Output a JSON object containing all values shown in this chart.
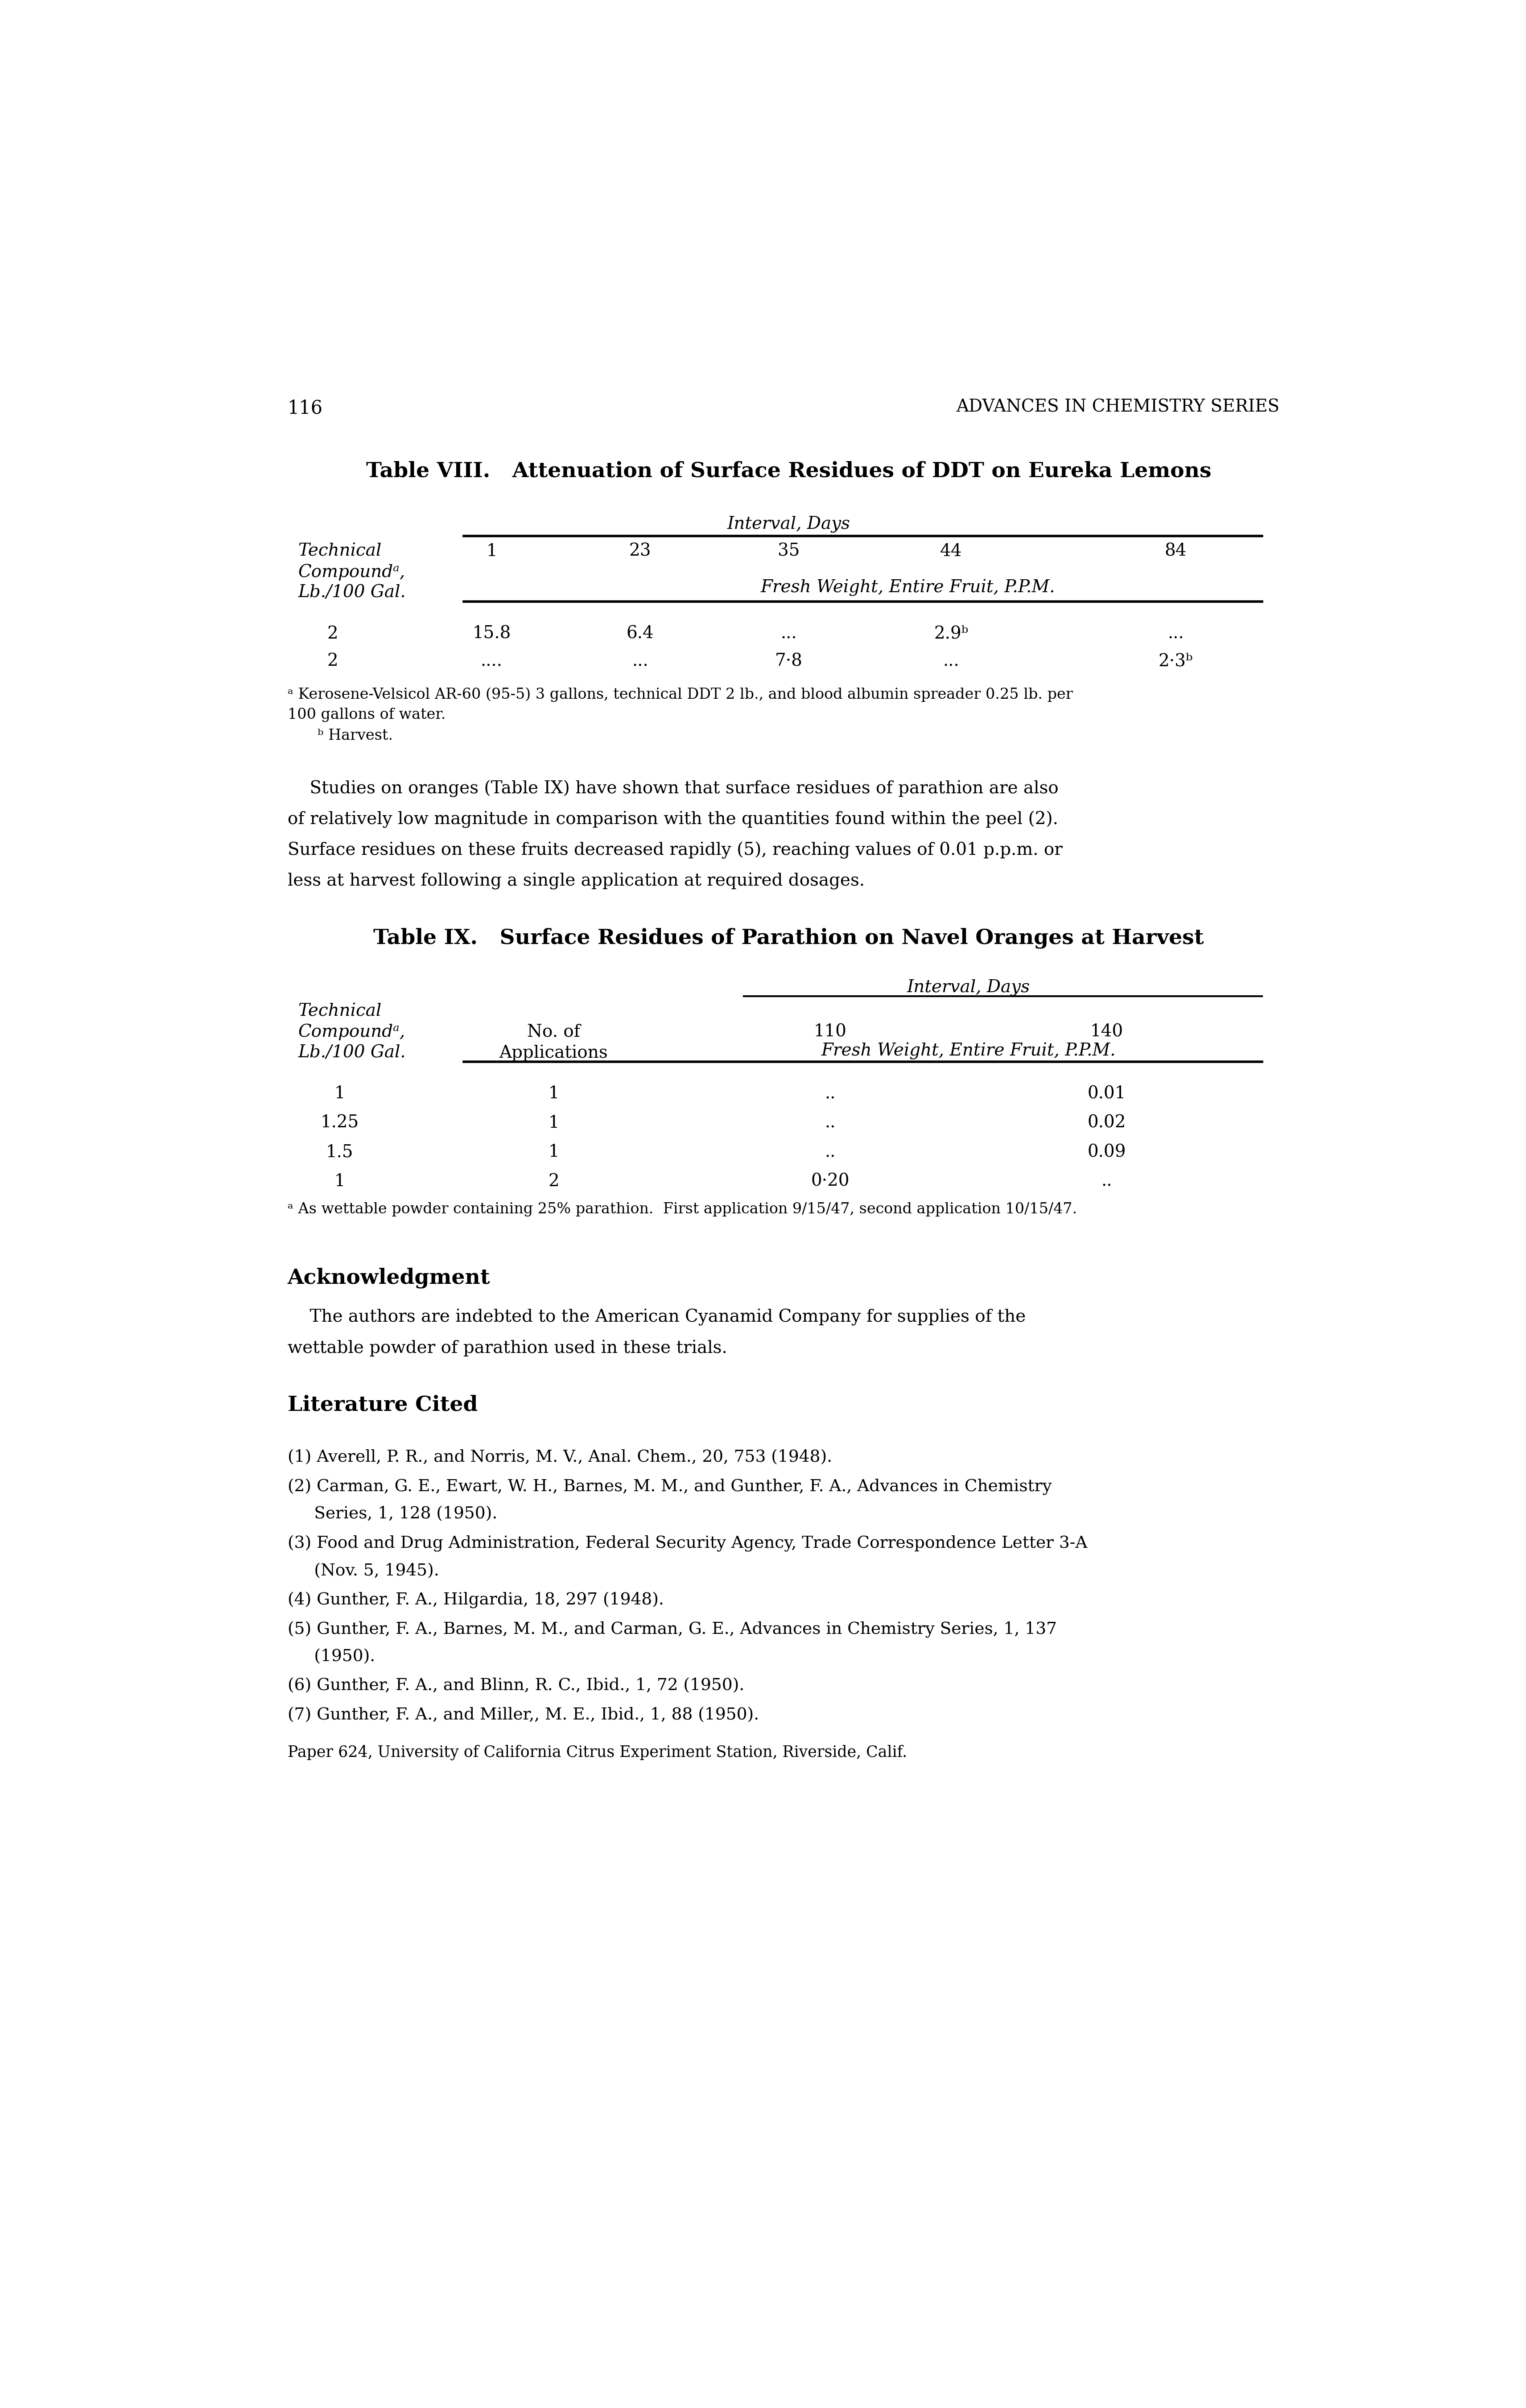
{
  "page_number": "116",
  "header_right": "ADVANCES IN CHEMISTRY SERIES",
  "table1_title": "Table VIII.   Attenuation of Surface Residues of DDT on Eureka Lemons",
  "table1_interval_label": "Interval, Days",
  "table1_col_header_left": [
    "Technical",
    "Compoundᵃ,",
    "Lb./100 Gal."
  ],
  "table1_col_days": [
    "1",
    "23",
    "35",
    "44",
    "84"
  ],
  "table1_subheader": "Fresh Weight, Entire Fruit, P.P.M.",
  "table1_row1": [
    "2",
    "15.8",
    "6.4",
    "...",
    "2.9ᵇ",
    "..."
  ],
  "table1_row2": [
    "2",
    "....",
    "...",
    "7·8",
    "...",
    "2·3ᵇ"
  ],
  "table1_footnote_a": "ᵃ Kerosene-Velsicol AR-60 (95-5) 3 gallons, technical DDT 2 lb., and blood albumin spreader 0.25 lb. per",
  "table1_footnote_a2": "100 gallons of water.",
  "table1_footnote_b": "  ᵇ Harvest.",
  "para_line1": "    Studies on oranges (Table IX) have shown that surface residues of parathion are also",
  "para_line2": "of relatively low magnitude in comparison with the quantities found within the peel (2).",
  "para_line3": "Surface residues on these fruits decreased rapidly (5), reaching values of 0.01 p.p.m. or",
  "para_line4": "less at harvest following a single application at required dosages.",
  "table2_title": "Table IX.   Surface Residues of Parathion on Navel Oranges at Harvest",
  "table2_interval_label": "Interval, Days",
  "table2_col_header_left": [
    "Technical",
    "Compoundᵃ,",
    "Lb./100 Gal."
  ],
  "table2_col_header_mid": [
    "No. of",
    "Applications"
  ],
  "table2_col_days": [
    "110",
    "140"
  ],
  "table2_subheader": "Fresh Weight, Entire Fruit, P.P.M.",
  "table2_row1": [
    "1",
    "1",
    "..",
    "0.01"
  ],
  "table2_row2": [
    "1.25",
    "1",
    "..",
    "0.02"
  ],
  "table2_row3": [
    "1.5",
    "1",
    "..",
    "0.09"
  ],
  "table2_row4": [
    "1",
    "2",
    "0·20",
    ".."
  ],
  "table2_footnote": "ᵃ As wettable powder containing 25% parathion.  First application 9/15/47, second application 10/15/47.",
  "ack_title": "Acknowledgment",
  "ack_line1": "    The authors are indebted to the American Cyanamid Company for supplies of the",
  "ack_line2": "wettable powder of parathion used in these trials.",
  "lit_title": "Literature Cited",
  "lit1a": "(1) Averell, P. R., and Norris, M. V., Anal. Chem., 20, 753 (1948).",
  "lit2a": "(2) Carman, G. E., Ewart, W. H., Barnes, M. M., and Gunther, F. A., Aᴅᴠᴀҳᴄᴇᴓ ᴵҳ Cʜᴇᴍᴵᴓᴜᴜ",
  "lit2b": "     Sᴇᴏᴵᴇᴓ, 1, 128 (1950).",
  "lit3a": "(3) Food and Drug Administration, Federal Security Agency, Trade Correspondence Letter 3-A",
  "lit3b": "     (Nov. 5, 1945).",
  "lit4a": "(4) Gunther, F. A., Hilgardia, 18, 297 (1948).",
  "lit5a": "(5) Gunther, F. A., Barnes, M. M., and Carman, G. E., Aᴅᴠᴀҳᴄᴇᴓ ᴵҳ Cʜᴇᴍᴵᴓᴜᴜᴚ Sᴇᴏᴵᴇᴓ, 1, 137",
  "lit5b": "     (1950).",
  "lit6a": "(6) Gunther, F. A., and Blinn, R. C., Ibid., 1, 72 (1950).",
  "lit7a": "(7) Gunther, F. A., and Miller,, M. E., Ibid., 1, 88 (1950).",
  "paper_note": "Paper 624, University of California Citrus Experiment Station, Riverside, Calif.",
  "bg_color": "#ffffff"
}
